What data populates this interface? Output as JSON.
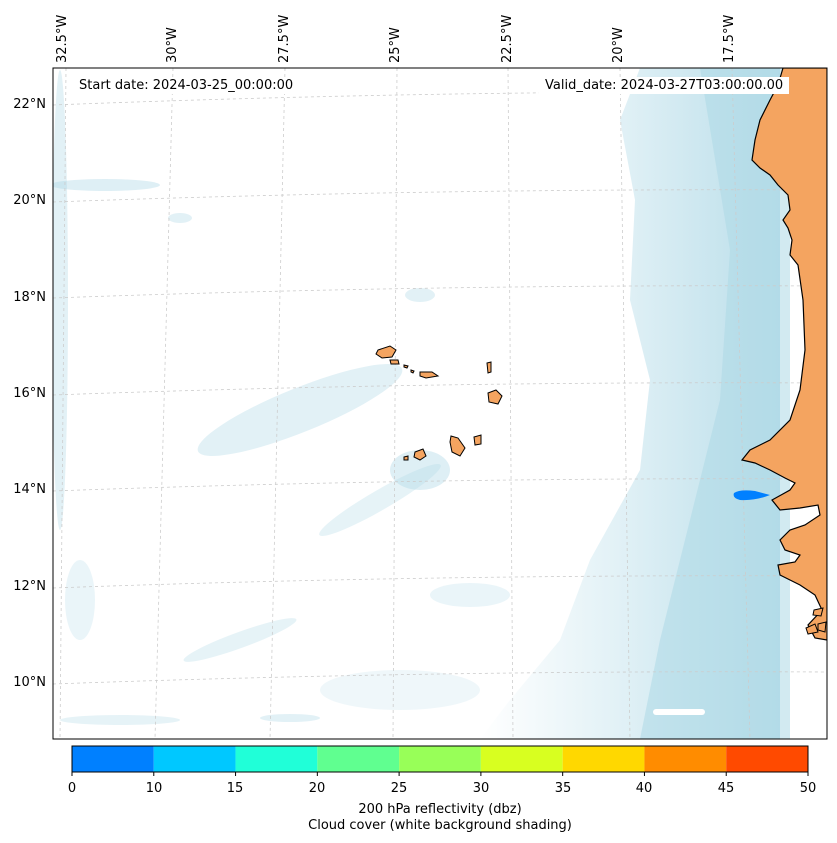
{
  "map": {
    "start_date": "Start date: 2024-03-25_00:00:00",
    "valid_date": "Valid_date: 2024-03-27T03:00:00.00",
    "lon_labels": [
      "32.5°W",
      "30°W",
      "27.5°W",
      "25°W",
      "22.5°W",
      "20°W",
      "17.5°W"
    ],
    "lat_labels": [
      "22°N",
      "20°N",
      "18°N",
      "16°N",
      "14°N",
      "12°N",
      "10°N"
    ],
    "land_color": "#f4a460",
    "cloud_color": "#add8e6"
  },
  "colorbar": {
    "ticks": [
      "0",
      "10",
      "15",
      "20",
      "25",
      "30",
      "35",
      "40",
      "45",
      "50"
    ],
    "colors": [
      "#0080ff",
      "#00c8ff",
      "#20ffd8",
      "#60ff90",
      "#98ff58",
      "#d8ff20",
      "#ffd800",
      "#ff8c00",
      "#ff4a00"
    ],
    "label_line1": "200 hPa reflectivity (dbz)",
    "label_line2": "Cloud cover (white background shading)"
  }
}
